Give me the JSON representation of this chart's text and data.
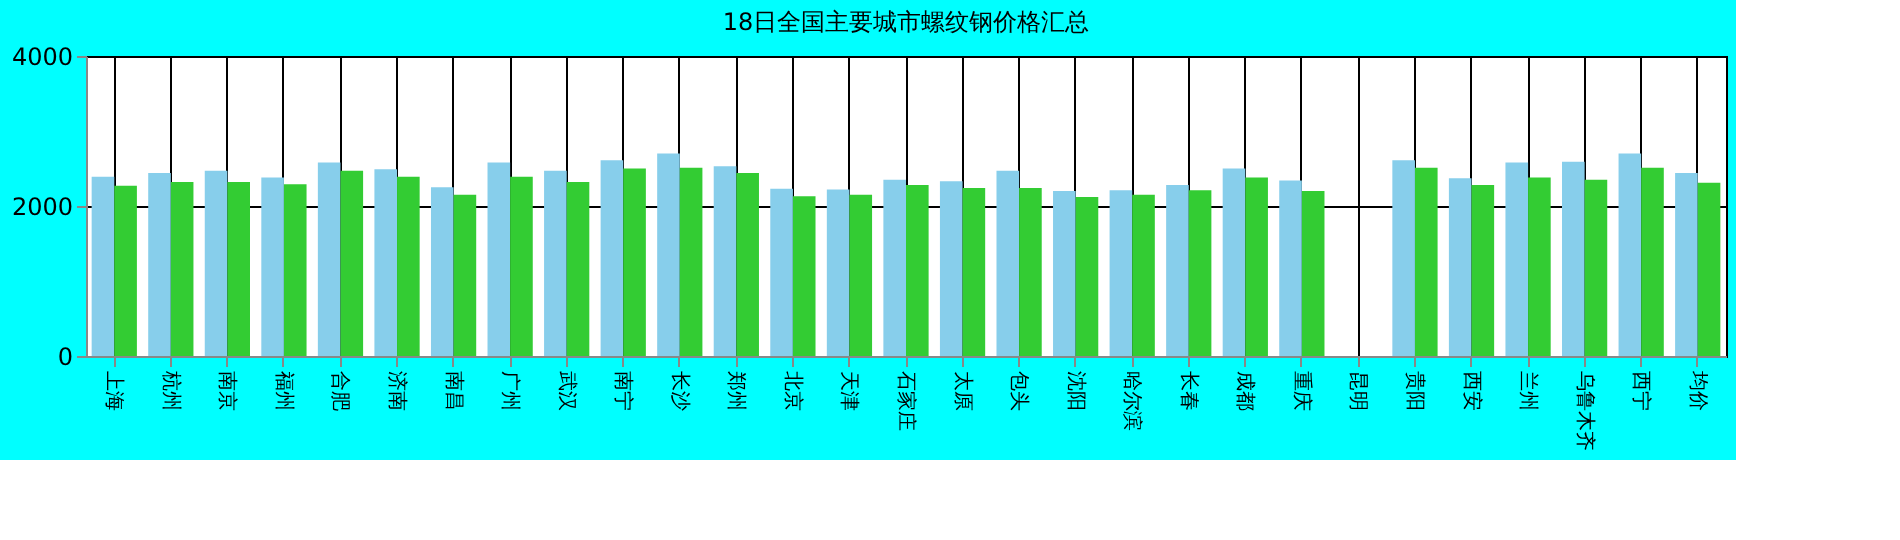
{
  "chart_data": {
    "type": "bar",
    "title": "18日全国主要城市螺纹钢价格汇总",
    "categories": [
      "上海",
      "杭州",
      "南京",
      "福州",
      "合肥",
      "济南",
      "南昌",
      "广州",
      "武汉",
      "南宁",
      "长沙",
      "郑州",
      "北京",
      "天津",
      "石家庄",
      "太原",
      "包头",
      "沈阳",
      "哈尔滨",
      "长春",
      "成都",
      "重庆",
      "昆明",
      "贵阳",
      "西安",
      "兰州",
      "乌鲁木齐",
      "西宁",
      "均价"
    ],
    "series": [
      {
        "color": "#87ceeb",
        "values": [
          2390,
          2440,
          2470,
          2380,
          2580,
          2490,
          2250,
          2580,
          2470,
          2610,
          2700,
          2530,
          2230,
          2220,
          2350,
          2330,
          2470,
          2200,
          2210,
          2280,
          2500,
          2340,
          null,
          2610,
          2370,
          2580,
          2590,
          2700,
          2440
        ]
      },
      {
        "color": "#33cc33",
        "values": [
          2270,
          2320,
          2320,
          2290,
          2470,
          2390,
          2150,
          2390,
          2320,
          2500,
          2510,
          2440,
          2130,
          2150,
          2280,
          2240,
          2240,
          2120,
          2150,
          2210,
          2380,
          2200,
          null,
          2510,
          2280,
          2380,
          2350,
          2510,
          2310
        ]
      }
    ],
    "ylim": [
      0,
      4000
    ],
    "yticks": [
      0,
      2000,
      4000
    ],
    "grid": true,
    "legend": false
  }
}
